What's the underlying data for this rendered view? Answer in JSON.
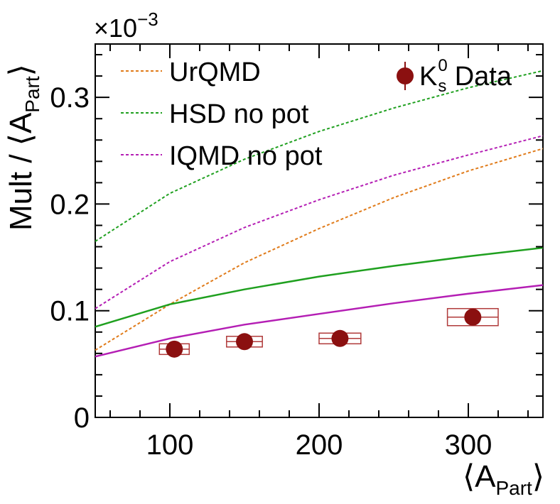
{
  "chart_data": {
    "type": "line",
    "exponent_label": "×10",
    "exponent_power": "−3",
    "xlabel": {
      "open": "⟨A",
      "sub": "Part",
      "close": "⟩"
    },
    "ylabel": {
      "main": "Mult / ⟨A",
      "sub": "Part",
      "close": "⟩"
    },
    "xlim": [
      50,
      350
    ],
    "ylim": [
      0,
      0.00035
    ],
    "x_ticks": [
      {
        "value": 100,
        "label": "100"
      },
      {
        "value": 200,
        "label": "200"
      },
      {
        "value": 300,
        "label": "300"
      }
    ],
    "y_ticks": [
      {
        "value": 0,
        "label": "0"
      },
      {
        "value": 0.0001,
        "label": "0.1"
      },
      {
        "value": 0.0002,
        "label": "0.2"
      },
      {
        "value": 0.0003,
        "label": "0.3"
      }
    ],
    "series": [
      {
        "name": "UrQMD",
        "style": "dashed",
        "color": "#e07b1a",
        "x": [
          50,
          100,
          150,
          200,
          250,
          300,
          350
        ],
        "y": [
          6.3e-05,
          0.000106,
          0.000145,
          0.000177,
          0.000206,
          0.000231,
          0.000252
        ]
      },
      {
        "name": "HSD no pot",
        "style": "dashed",
        "color": "#1fa01f",
        "x": [
          50,
          100,
          150,
          200,
          250,
          300,
          350
        ],
        "y": [
          0.000165,
          0.00021,
          0.000242,
          0.000268,
          0.00029,
          0.000309,
          0.000325
        ]
      },
      {
        "name": "IQMD no pot",
        "style": "dashed",
        "color": "#b41eb4",
        "x": [
          50,
          100,
          150,
          200,
          250,
          300,
          350
        ],
        "y": [
          0.000102,
          0.000146,
          0.000178,
          0.000204,
          0.000227,
          0.000246,
          0.000264
        ]
      },
      {
        "style": "solid",
        "color": "#1fa01f",
        "x": [
          50,
          100,
          150,
          200,
          250,
          300,
          350
        ],
        "y": [
          8.5e-05,
          0.000106,
          0.00012,
          0.000132,
          0.000142,
          0.000151,
          0.000159
        ]
      },
      {
        "style": "solid",
        "color": "#b41eb4",
        "x": [
          50,
          100,
          150,
          200,
          250,
          300,
          350
        ],
        "y": [
          5.7e-05,
          7.4e-05,
          8.7e-05,
          9.7e-05,
          0.000107,
          0.000116,
          0.000124
        ]
      }
    ],
    "data_series": {
      "name": "Data",
      "legend_symbol": {
        "main": "K",
        "sub": "s",
        "sup": "0"
      },
      "color": "#8b1010",
      "box_color": "#b03a3a",
      "points": [
        {
          "x": 103,
          "y": 6.4e-05,
          "x_err": 10,
          "y_err": 5e-06
        },
        {
          "x": 150,
          "y": 7.1e-05,
          "x_err": 12,
          "y_err": 5e-06
        },
        {
          "x": 214,
          "y": 7.4e-05,
          "x_err": 14,
          "y_err": 5e-06
        },
        {
          "x": 303,
          "y": 9.4e-05,
          "x_err": 17,
          "y_err": 8e-06
        }
      ]
    },
    "legend": {
      "placement": "top-left",
      "data_placement": "top-right"
    },
    "grid": false
  }
}
